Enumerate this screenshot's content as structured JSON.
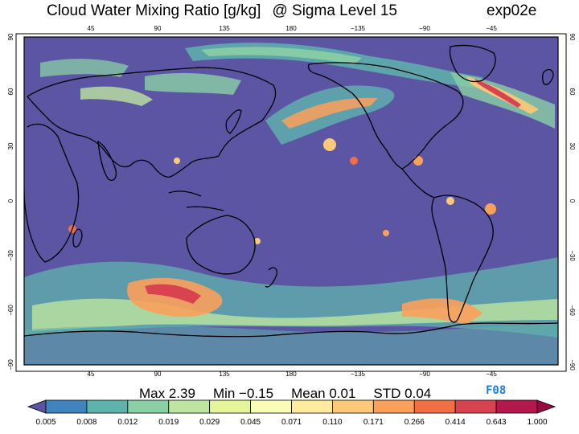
{
  "title": {
    "text": "Cloud Water Mixing Ratio [g/kg]",
    "level": "@ Sigma Level 15"
  },
  "experiment": "exp02e",
  "badge": "F08",
  "stats": {
    "max": "Max 2.39",
    "min": "Min −0.15",
    "mean": "Mean 0.01",
    "std": "STD 0.04"
  },
  "map": {
    "lon_ticks": [
      "45",
      "90",
      "135",
      "180",
      "−135",
      "−90",
      "−45"
    ],
    "lat_ticks": [
      "90",
      "60",
      "30",
      "0",
      "−30",
      "−60",
      "−90"
    ],
    "background_color": "#5b55a3",
    "coast_color": "#000000"
  },
  "colorbar": {
    "labels": [
      "0.005",
      "0.008",
      "0.012",
      "0.019",
      "0.029",
      "0.045",
      "0.071",
      "0.110",
      "0.171",
      "0.266",
      "0.414",
      "0.643",
      "1.000"
    ],
    "colors": [
      "#5a53a2",
      "#3f84bd",
      "#5fb3ad",
      "#8ad0a5",
      "#bde5a0",
      "#e5f59a",
      "#f8fcb4",
      "#feeb9d",
      "#fdc978",
      "#fba05b",
      "#f26f44",
      "#d94350",
      "#b3174b",
      "#9a0942"
    ]
  }
}
